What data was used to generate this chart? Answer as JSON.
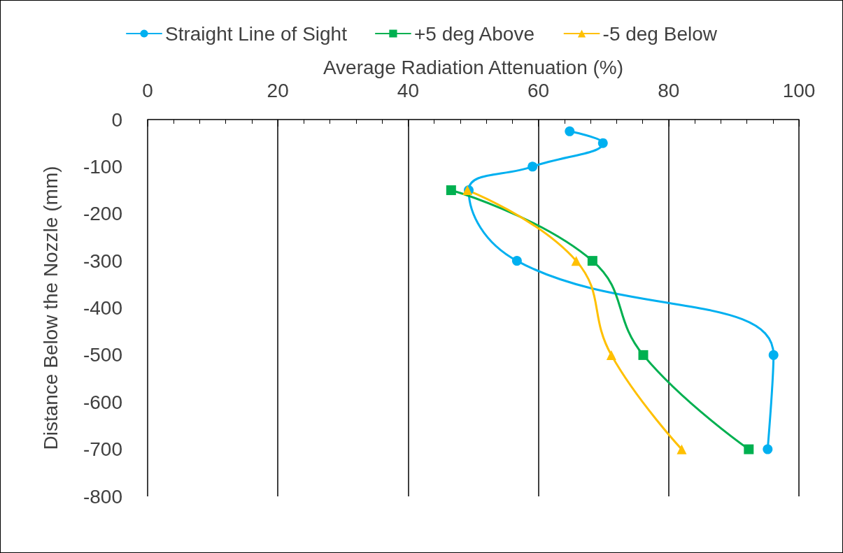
{
  "chart_data": {
    "type": "line",
    "xlabel": "Average Radiation Attenuation (%)",
    "ylabel": "Distance Below the Nozzle (mm)",
    "xlim": [
      0,
      100
    ],
    "xticks": [
      0,
      20,
      40,
      60,
      80,
      100
    ],
    "ylim": [
      -800,
      0
    ],
    "yticks": [
      -800,
      -700,
      -600,
      -500,
      -400,
      -300,
      -200,
      -100,
      0
    ],
    "grid": "x",
    "legend": "top",
    "line_style": "solid",
    "series": [
      {
        "name": "Straight Line of Sight",
        "color": "#00b0f0",
        "marker": "circle",
        "x": [
          64.8,
          69.9,
          59.1,
          49.3,
          56.7,
          96.1,
          95.2
        ],
        "values": [
          -25,
          -50,
          -100,
          -150,
          -300,
          -500,
          -700
        ]
      },
      {
        "name": "+5 deg Above",
        "color": "#00b050",
        "marker": "square",
        "x": [
          46.6,
          68.3,
          76.1,
          92.3
        ],
        "values": [
          -150,
          -300,
          -500,
          -700
        ]
      },
      {
        "name": "-5 deg Below",
        "color": "#ffc000",
        "marker": "triangle",
        "x": [
          49.1,
          65.8,
          71.2,
          82.0
        ],
        "values": [
          -150,
          -300,
          -500,
          -700
        ]
      }
    ]
  }
}
